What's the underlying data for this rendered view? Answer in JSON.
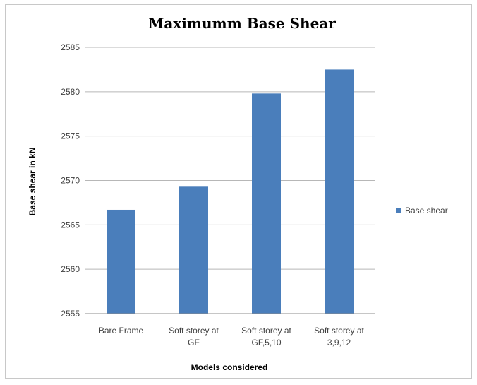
{
  "chart_data": {
    "type": "bar",
    "title": "Maximumm Base Shear",
    "xlabel": "Models considered",
    "ylabel": "Base shear in kN",
    "categories": [
      [
        "Bare Frame"
      ],
      [
        "Soft storey at",
        "GF"
      ],
      [
        "Soft storey at",
        "GF,5,10"
      ],
      [
        "Soft storey at",
        "3,9,12"
      ]
    ],
    "series": [
      {
        "name": "Base shear",
        "values": [
          2566.7,
          2569.3,
          2579.8,
          2582.5
        ]
      }
    ],
    "ylim": [
      2555,
      2585
    ],
    "yticks": [
      "2555",
      "2560",
      "2565",
      "2570",
      "2575",
      "2580",
      "2585"
    ],
    "grid": true,
    "legend_position": "right",
    "colors": {
      "bar": "#4a7ebb",
      "grid": "#b7b7b7",
      "axis": "#8c8c8c"
    }
  }
}
